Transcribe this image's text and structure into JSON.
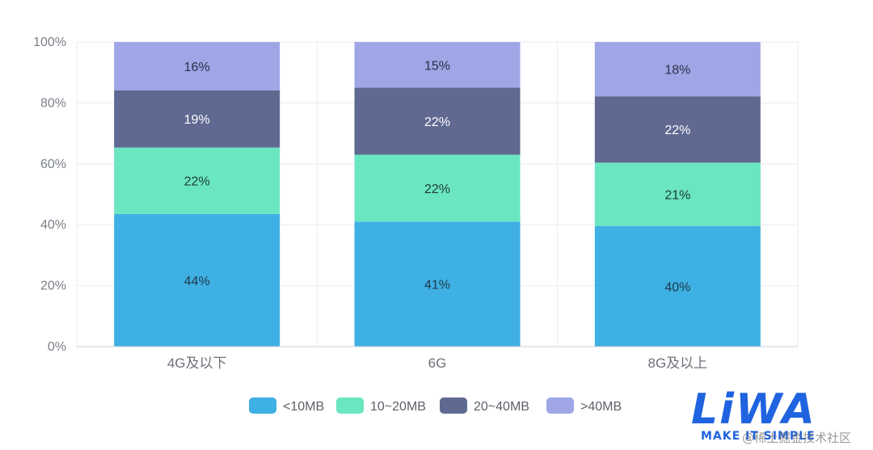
{
  "chart_data": {
    "type": "bar",
    "stacked": true,
    "normalized": true,
    "categories": [
      "4G及以下",
      "6G",
      "8G及以上"
    ],
    "series": [
      {
        "name": "<10MB",
        "values": [
          44,
          41,
          40
        ],
        "color": "#3eb0e3",
        "label_color": "#1f3a4a"
      },
      {
        "name": "10~20MB",
        "values": [
          22,
          22,
          21
        ],
        "color": "#6ae6c0",
        "label_color": "#1f3a34"
      },
      {
        "name": "20~40MB",
        "values": [
          19,
          22,
          22
        ],
        "color": "#5f6991",
        "label_color": "#ffffff"
      },
      {
        "name": ">40MB",
        "values": [
          16,
          15,
          18
        ],
        "color": "#9ea6e6",
        "label_color": "#2b2f45"
      }
    ],
    "y_ticks": [
      "0%",
      "20%",
      "40%",
      "60%",
      "80%",
      "100%"
    ],
    "ylim": [
      0,
      100
    ],
    "grid": true,
    "legend_position": "bottom"
  },
  "logo": {
    "mark": "LiWA",
    "tagline": "MAKE IT SIMPLE"
  },
  "watermark": "@稀土掘金技术社区"
}
